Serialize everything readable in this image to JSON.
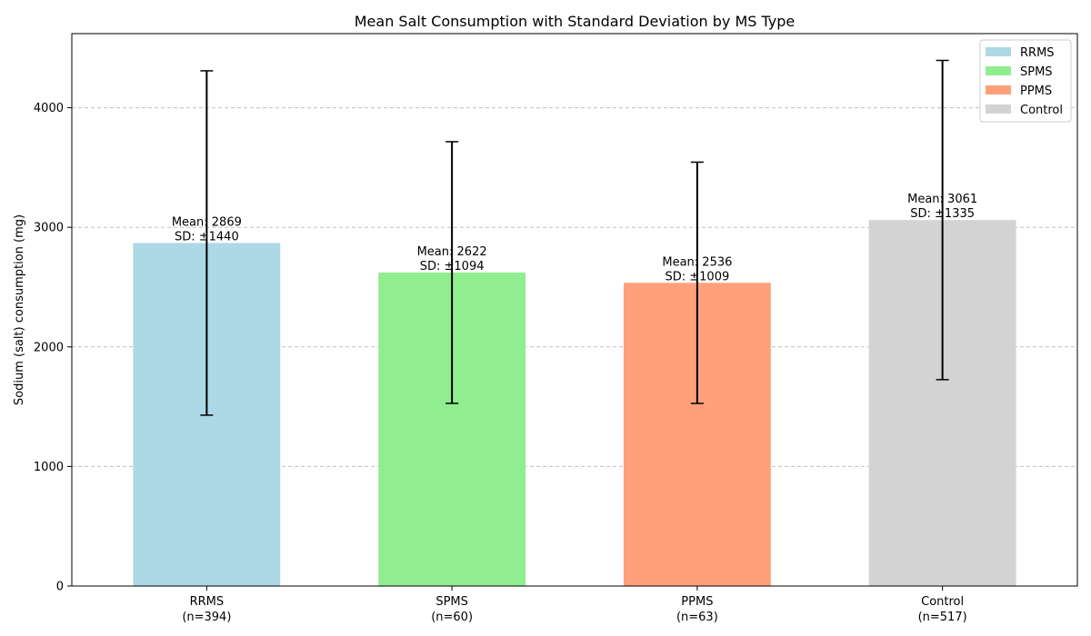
{
  "chart_data": {
    "type": "bar",
    "title": "Mean Salt Consumption with Standard Deviation by MS Type",
    "xlabel": "",
    "ylabel": "Sodium (salt) consumption (mg)",
    "ylim": [
      0,
      4620
    ],
    "yticks": [
      0,
      1000,
      2000,
      3000,
      4000
    ],
    "grid": {
      "y": true,
      "x": false
    },
    "legend_position": "top-right",
    "categories": [
      "RRMS",
      "SPMS",
      "PPMS",
      "Control"
    ],
    "category_counts": [
      "(n=394)",
      "(n=60)",
      "(n=63)",
      "(n=517)"
    ],
    "series": [
      {
        "name": "RRMS",
        "value": 2869,
        "sd": 1440,
        "color": "#add8e6",
        "mean_label": "Mean: 2869",
        "sd_label": "SD: ±1440"
      },
      {
        "name": "SPMS",
        "value": 2622,
        "sd": 1094,
        "color": "#90ee90",
        "mean_label": "Mean: 2622",
        "sd_label": "SD: ±1094"
      },
      {
        "name": "PPMS",
        "value": 2536,
        "sd": 1009,
        "color": "#ffa07a",
        "mean_label": "Mean: 2536",
        "sd_label": "SD: ±1009"
      },
      {
        "name": "Control",
        "value": 3061,
        "sd": 1335,
        "color": "#d3d3d3",
        "mean_label": "Mean: 3061",
        "sd_label": "SD: ±1335"
      }
    ],
    "error_bar_color": "#000000",
    "grid_color": "#c0c0c0"
  }
}
